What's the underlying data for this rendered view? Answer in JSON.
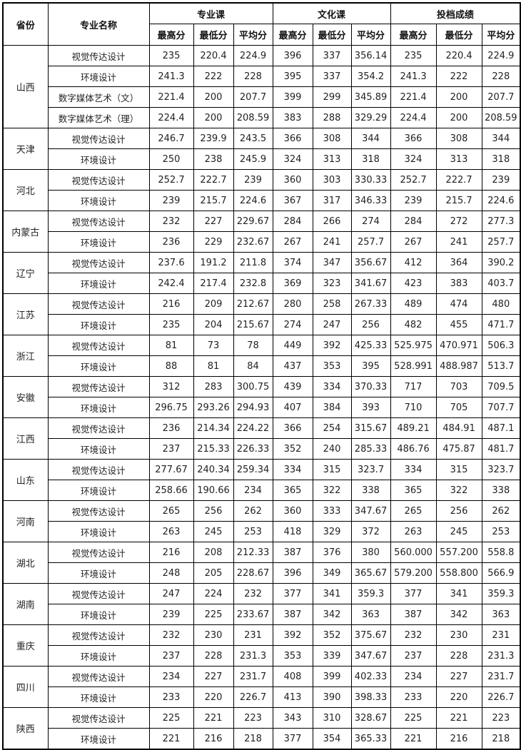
{
  "headers": {
    "province": "省份",
    "major": "专业名称",
    "groups": [
      "专业课",
      "文化课",
      "投档成绩"
    ],
    "sub": [
      "最高分",
      "最低分",
      "平均分"
    ]
  },
  "rows": [
    {
      "province": "山西",
      "majors": [
        {
          "name": "视觉传达设计",
          "v": [
            "235",
            "220.4",
            "224.9",
            "396",
            "337",
            "356.14",
            "235",
            "220.4",
            "224.9"
          ]
        },
        {
          "name": "环境设计",
          "v": [
            "241.3",
            "222",
            "228",
            "395",
            "337",
            "354.2",
            "241.3",
            "222",
            "228"
          ]
        },
        {
          "name": "数字媒体艺术（文）",
          "v": [
            "221.4",
            "200",
            "207.7",
            "399",
            "299",
            "345.89",
            "221.4",
            "200",
            "207.7"
          ]
        },
        {
          "name": "数字媒体艺术（理）",
          "v": [
            "224.4",
            "200",
            "208.59",
            "383",
            "288",
            "329.29",
            "224.4",
            "200",
            "208.59"
          ]
        }
      ]
    },
    {
      "province": "天津",
      "majors": [
        {
          "name": "视觉传达设计",
          "v": [
            "246.7",
            "239.9",
            "243.5",
            "366",
            "308",
            "344",
            "366",
            "308",
            "344"
          ]
        },
        {
          "name": "环境设计",
          "v": [
            "250",
            "238",
            "245.9",
            "324",
            "313",
            "318",
            "324",
            "313",
            "318"
          ]
        }
      ]
    },
    {
      "province": "河北",
      "majors": [
        {
          "name": "视觉传达设计",
          "v": [
            "252.7",
            "222.7",
            "239",
            "360",
            "303",
            "330.33",
            "252.7",
            "222.7",
            "239"
          ]
        },
        {
          "name": "环境设计",
          "v": [
            "239",
            "215.7",
            "224.6",
            "367",
            "317",
            "346.33",
            "239",
            "215.7",
            "224.6"
          ]
        }
      ]
    },
    {
      "province": "内蒙古",
      "majors": [
        {
          "name": "视觉传达设计",
          "v": [
            "232",
            "227",
            "229.67",
            "284",
            "266",
            "274",
            "284",
            "272",
            "277.3"
          ]
        },
        {
          "name": "环境设计",
          "v": [
            "236",
            "229",
            "232.67",
            "267",
            "241",
            "257.7",
            "267",
            "241",
            "257.7"
          ]
        }
      ]
    },
    {
      "province": "辽宁",
      "majors": [
        {
          "name": "视觉传达设计",
          "v": [
            "237.6",
            "191.2",
            "211.8",
            "374",
            "347",
            "356.67",
            "412",
            "364",
            "390.2"
          ]
        },
        {
          "name": "环境设计",
          "v": [
            "242.4",
            "217.4",
            "232.8",
            "369",
            "323",
            "341.67",
            "423",
            "383",
            "403.7"
          ]
        }
      ]
    },
    {
      "province": "江苏",
      "majors": [
        {
          "name": "视觉传达设计",
          "v": [
            "216",
            "209",
            "212.67",
            "280",
            "258",
            "267.33",
            "489",
            "474",
            "480"
          ]
        },
        {
          "name": "环境设计",
          "v": [
            "235",
            "204",
            "215.67",
            "274",
            "247",
            "256",
            "482",
            "455",
            "471.7"
          ]
        }
      ]
    },
    {
      "province": "浙江",
      "majors": [
        {
          "name": "视觉传达设计",
          "v": [
            "81",
            "73",
            "78",
            "449",
            "392",
            "425.33",
            "525.975",
            "470.971",
            "506.3"
          ]
        },
        {
          "name": "环境设计",
          "v": [
            "88",
            "81",
            "84",
            "437",
            "353",
            "395",
            "528.991",
            "488.987",
            "513.7"
          ]
        }
      ]
    },
    {
      "province": "安徽",
      "majors": [
        {
          "name": "视觉传达设计",
          "v": [
            "312",
            "283",
            "300.75",
            "439",
            "334",
            "370.33",
            "717",
            "703",
            "709.5"
          ]
        },
        {
          "name": "环境设计",
          "v": [
            "296.75",
            "293.26",
            "294.93",
            "407",
            "384",
            "393",
            "710",
            "705",
            "707.7"
          ]
        }
      ]
    },
    {
      "province": "江西",
      "majors": [
        {
          "name": "视觉传达设计",
          "v": [
            "236",
            "214.34",
            "224.22",
            "366",
            "254",
            "315.67",
            "489.21",
            "484.91",
            "487.1"
          ]
        },
        {
          "name": "环境设计",
          "v": [
            "237",
            "215.33",
            "226.33",
            "352",
            "240",
            "285.33",
            "486.76",
            "475.87",
            "481.7"
          ]
        }
      ]
    },
    {
      "province": "山东",
      "majors": [
        {
          "name": "视觉传达设计",
          "v": [
            "277.67",
            "240.34",
            "259.34",
            "334",
            "315",
            "323.7",
            "334",
            "315",
            "323.7"
          ]
        },
        {
          "name": "环境设计",
          "v": [
            "258.66",
            "190.66",
            "234",
            "365",
            "322",
            "338",
            "365",
            "322",
            "338"
          ]
        }
      ]
    },
    {
      "province": "河南",
      "majors": [
        {
          "name": "视觉传达设计",
          "v": [
            "265",
            "256",
            "262",
            "360",
            "333",
            "347.67",
            "265",
            "256",
            "262"
          ]
        },
        {
          "name": "环境设计",
          "v": [
            "263",
            "245",
            "253",
            "418",
            "329",
            "372",
            "263",
            "245",
            "253"
          ]
        }
      ]
    },
    {
      "province": "湖北",
      "majors": [
        {
          "name": "视觉传达设计",
          "v": [
            "216",
            "208",
            "212.33",
            "387",
            "376",
            "380",
            "560.000",
            "557.200",
            "558.8"
          ]
        },
        {
          "name": "环境设计",
          "v": [
            "248",
            "205",
            "228.67",
            "396",
            "349",
            "365.67",
            "579.200",
            "558.800",
            "566.9"
          ]
        }
      ]
    },
    {
      "province": "湖南",
      "majors": [
        {
          "name": "视觉传达设计",
          "v": [
            "247",
            "224",
            "232",
            "377",
            "341",
            "359.3",
            "377",
            "341",
            "359.3"
          ]
        },
        {
          "name": "环境设计",
          "v": [
            "239",
            "225",
            "233.67",
            "387",
            "342",
            "363",
            "387",
            "342",
            "363"
          ]
        }
      ]
    },
    {
      "province": "重庆",
      "majors": [
        {
          "name": "视觉传达设计",
          "v": [
            "232",
            "230",
            "231",
            "392",
            "352",
            "375.67",
            "232",
            "230",
            "231"
          ]
        },
        {
          "name": "环境设计",
          "v": [
            "237",
            "228",
            "231.3",
            "353",
            "339",
            "347.67",
            "237",
            "228",
            "231.3"
          ]
        }
      ]
    },
    {
      "province": "四川",
      "majors": [
        {
          "name": "视觉传达设计",
          "v": [
            "234",
            "227",
            "231.7",
            "408",
            "399",
            "402.33",
            "234",
            "227",
            "231.7"
          ]
        },
        {
          "name": "环境设计",
          "v": [
            "233",
            "220",
            "226.7",
            "413",
            "390",
            "398.33",
            "233",
            "220",
            "226.7"
          ]
        }
      ]
    },
    {
      "province": "陕西",
      "majors": [
        {
          "name": "视觉传达设计",
          "v": [
            "225",
            "221",
            "223",
            "343",
            "310",
            "328.67",
            "225",
            "221",
            "223"
          ]
        },
        {
          "name": "环境设计",
          "v": [
            "221",
            "216",
            "218",
            "377",
            "354",
            "365.33",
            "221",
            "216",
            "218"
          ]
        }
      ]
    }
  ]
}
